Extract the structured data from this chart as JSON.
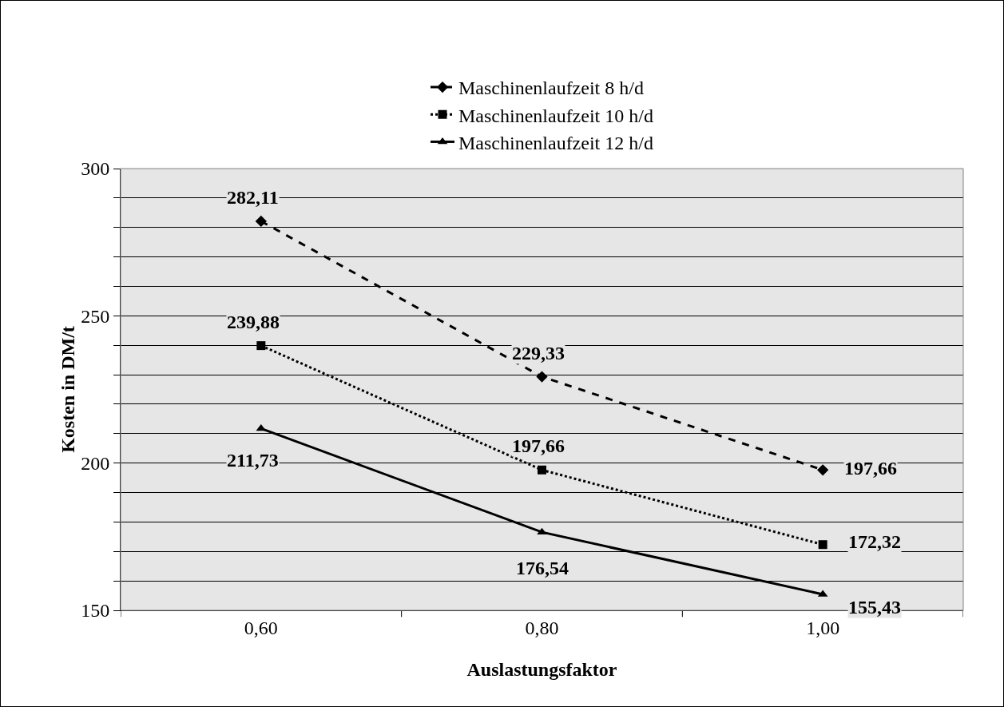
{
  "chart_data": {
    "type": "line",
    "xlabel": "Auslastungsfaktor",
    "ylabel": "Kosten in DM/t",
    "categories": [
      "0,60",
      "0,80",
      "1,00"
    ],
    "ylim": [
      150,
      300
    ],
    "yticks": [
      150,
      {
        "value": 160,
        "label": null
      },
      {
        "value": 170,
        "label": null
      },
      {
        "value": 180,
        "label": null
      },
      {
        "value": 190,
        "label": null
      },
      200,
      {
        "value": 210,
        "label": null
      },
      {
        "value": 220,
        "label": null
      },
      {
        "value": 230,
        "label": null
      },
      {
        "value": 240,
        "label": null
      },
      250,
      {
        "value": 260,
        "label": null
      },
      {
        "value": 270,
        "label": null
      },
      {
        "value": 280,
        "label": null
      },
      {
        "value": 290,
        "label": null
      },
      300
    ],
    "grid": "y",
    "legend": "top",
    "series": [
      {
        "name": "Maschinenlaufzeit 8 h/d",
        "color": "#000000",
        "line_style": "dashed",
        "marker": "diamond",
        "values": [
          282.11,
          229.33,
          197.66
        ],
        "value_labels": [
          "282,11",
          "229,33",
          "197,66"
        ]
      },
      {
        "name": "Maschinenlaufzeit 10 h/d",
        "color": "#000000",
        "line_style": "dotted",
        "marker": "square",
        "values": [
          239.88,
          197.66,
          172.32
        ],
        "value_labels": [
          "239,88",
          "197,66",
          "172,32"
        ]
      },
      {
        "name": "Maschinenlaufzeit 12 h/d",
        "color": "#000000",
        "line_style": "solid",
        "marker": "triangle",
        "values": [
          211.73,
          176.54,
          155.43
        ],
        "value_labels": [
          "211,73",
          "176,54",
          "155,43"
        ]
      }
    ]
  }
}
